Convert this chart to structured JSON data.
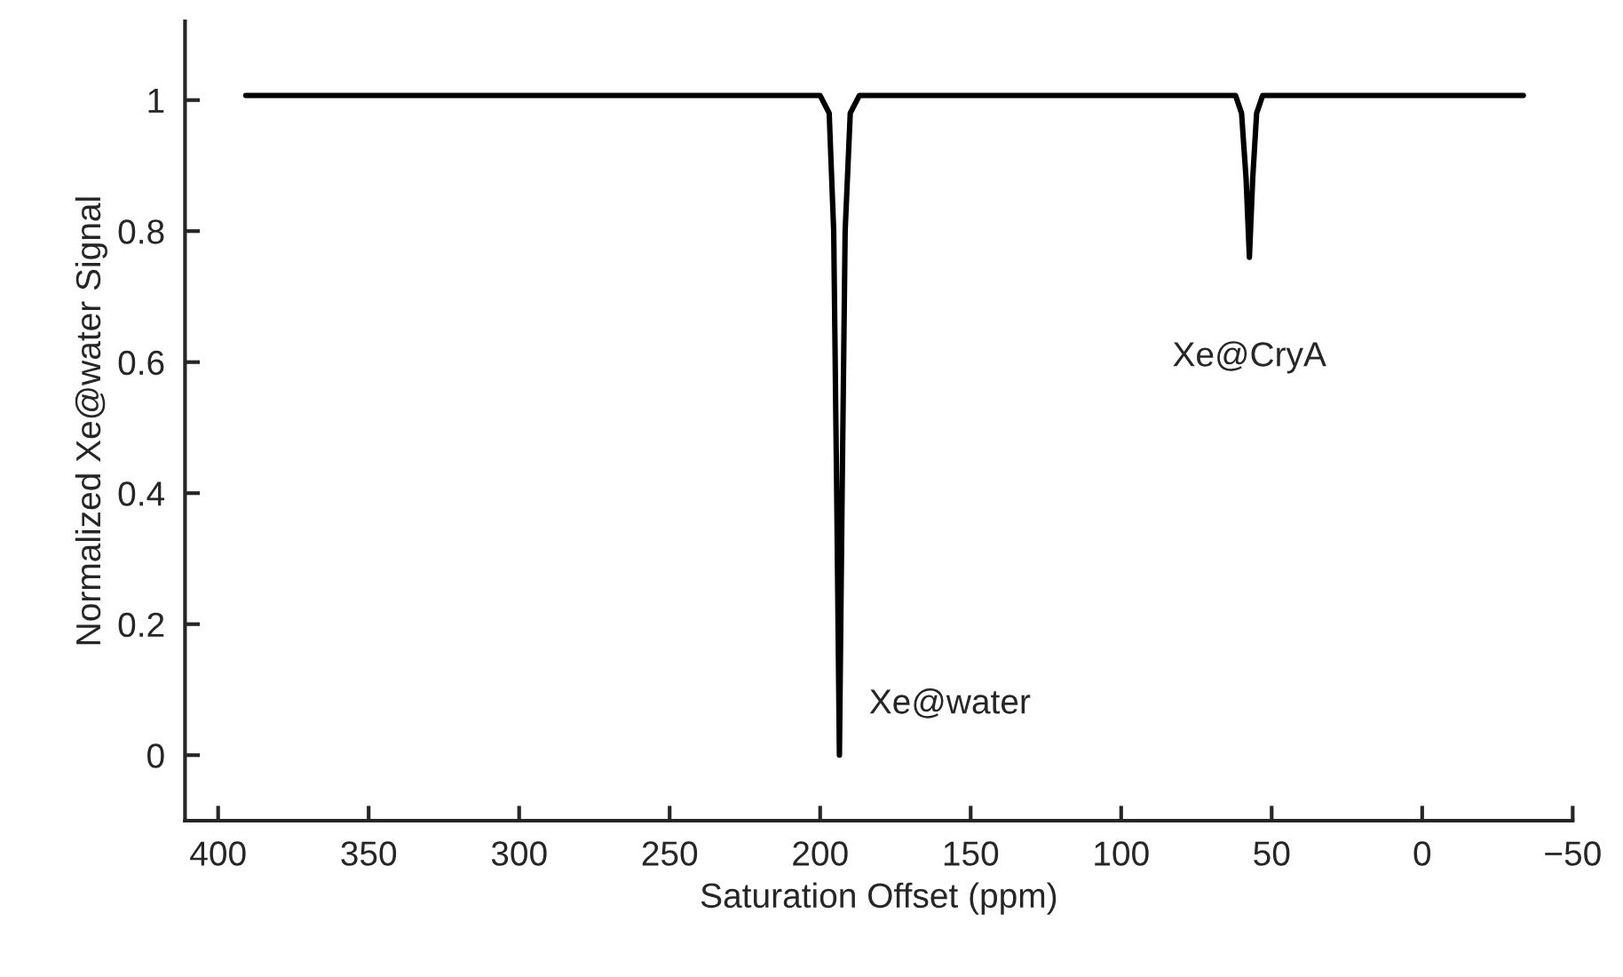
{
  "chart_data": {
    "type": "line",
    "xlabel": "Saturation Offset (ppm)",
    "ylabel": "Normalized Xe@water Signal",
    "series": [
      {
        "color": "#000000",
        "x": [
          390.8,
          200,
          197,
          195.5,
          194.5,
          193.6,
          192.7,
          191.7,
          190,
          187,
          62,
          60,
          58.5,
          57.4,
          56.3,
          55,
          53,
          -33.6
        ],
        "values": [
          1.007,
          1.007,
          0.98,
          0.8,
          0.4,
          0,
          0.4,
          0.8,
          0.98,
          1.007,
          1.007,
          0.98,
          0.88,
          0.76,
          0.88,
          0.98,
          1.007,
          1.007
        ]
      }
    ],
    "xlim": [
      411,
      -50
    ],
    "xticks": [
      400,
      350,
      300,
      250,
      200,
      150,
      100,
      50,
      0,
      {
        "value": -50,
        "label": "−50"
      }
    ],
    "ylim": [
      -0.1,
      1.12
    ],
    "yticks": [
      0,
      0.2,
      0.4,
      0.6,
      0.8,
      1
    ],
    "annotations": [
      {
        "text": "Xe@water",
        "x": 193.6,
        "y": 0
      },
      {
        "text": "Xe@CryA",
        "x": 57.4,
        "y": 0.76
      }
    ],
    "grid": false,
    "legend": false,
    "marker": "none",
    "line_style": "solid"
  }
}
